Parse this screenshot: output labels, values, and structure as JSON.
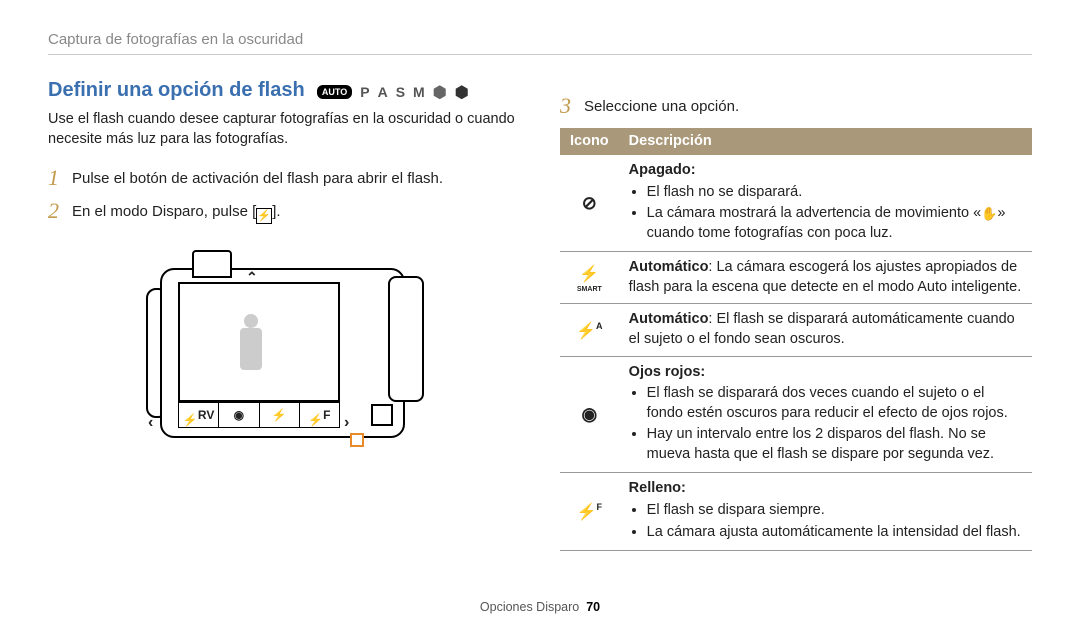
{
  "breadcrumb": "Captura de fotografías en la oscuridad",
  "left": {
    "title": "Definir una opción de flash",
    "modes": {
      "auto": "AUTO",
      "p": "P",
      "a": "A",
      "s": "S",
      "m": "M"
    },
    "intro": "Use el flash cuando desee capturar fotografías en la oscuridad o cuando necesite más luz para las fotografías.",
    "step1_num": "1",
    "step1_text": "Pulse el botón de activación del flash para abrir el flash.",
    "step2_num": "2",
    "step2_text_a": "En el modo Disparo, pulse [",
    "step2_text_b": "]."
  },
  "right": {
    "step3_num": "3",
    "step3_text": "Seleccione una opción.",
    "th_icon": "Icono",
    "th_desc": "Descripción",
    "rows": {
      "off": {
        "title": "Apagado:",
        "b1": "El flash no se disparará.",
        "b2a": "La cámara mostrará la advertencia de movimiento «",
        "b2b": "» cuando tome fotografías con poca luz."
      },
      "smart": {
        "text_a": "Automático",
        "text_b": ": La cámara escogerá los ajustes apropiados de flash para la escena que detecte en el modo Auto inteligente."
      },
      "autoA": {
        "text_a": "Automático",
        "text_b": ": El flash se disparará automáticamente cuando el sujeto o el fondo sean oscuros."
      },
      "redeye": {
        "title": "Ojos rojos:",
        "b1": "El flash se disparará dos veces cuando el sujeto o el fondo estén oscuros para reducir el efecto de ojos rojos.",
        "b2": "Hay un intervalo entre los 2 disparos del flash. No se mueva hasta que el flash se dispare por segunda vez."
      },
      "fill": {
        "title": "Relleno:",
        "b1": "El flash se dispara siempre.",
        "b2": "La cámara ajusta automáticamente la intensidad del flash."
      }
    }
  },
  "footer": {
    "label": "Opciones Disparo",
    "page": "70"
  }
}
